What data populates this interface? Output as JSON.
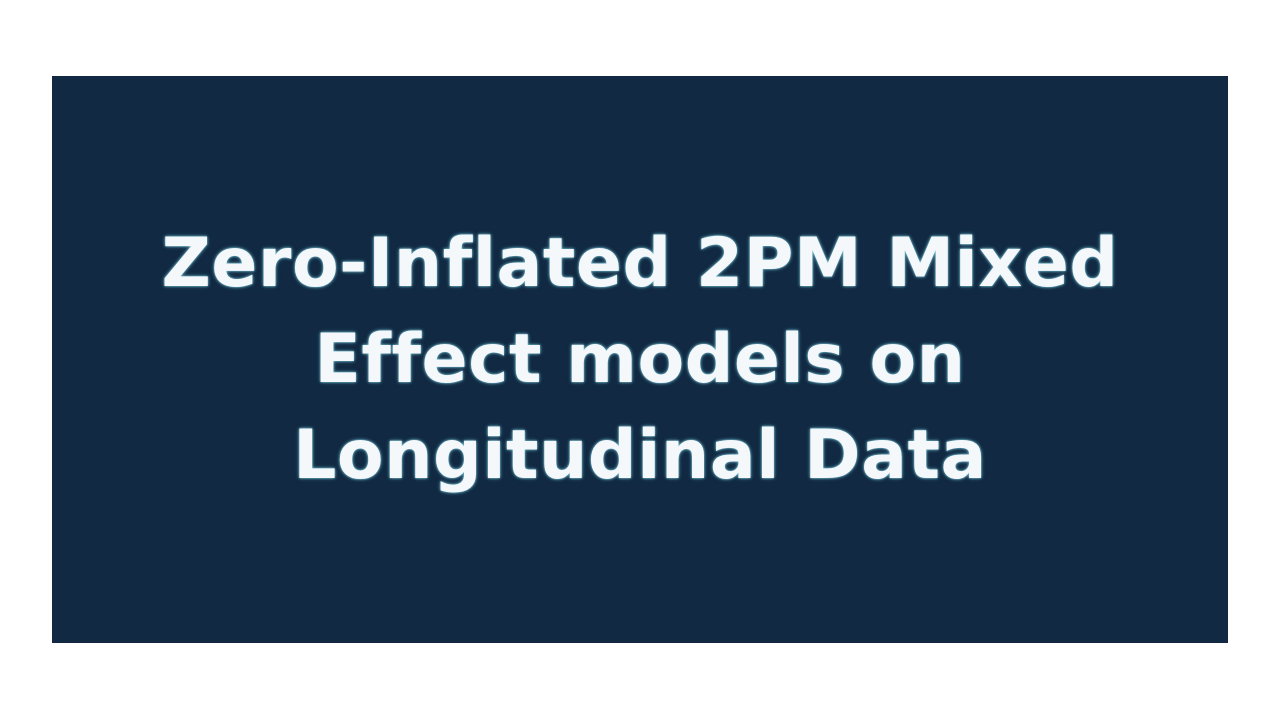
{
  "slide": {
    "title_lines": [
      "Zero-Inflated 2PM Mixed",
      "Effect models on",
      "Longitudinal Data"
    ]
  },
  "colors": {
    "page_background": "#ffffff",
    "banner_background": "#112942",
    "title_text": "#f4f8fb",
    "title_glow": "#7fd3e6"
  }
}
